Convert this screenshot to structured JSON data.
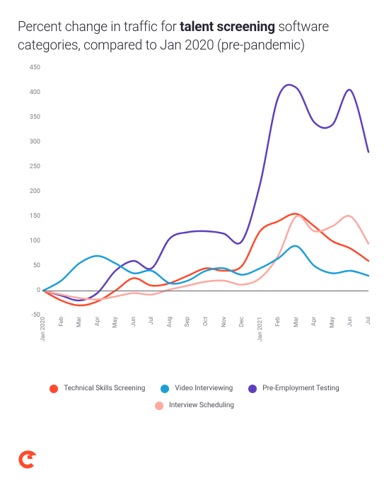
{
  "title": {
    "pre": "Percent change in traffic for ",
    "bold": "talent screening",
    "post": " software categories, compared to Jan 2020 (pre-pandemic)",
    "fontsize": 19,
    "color": "#252530"
  },
  "chart": {
    "type": "line",
    "background_color": "#ffffff",
    "baseline_color": "#606068",
    "axis_text_color": "#7a7a85",
    "axis_fontsize": 9,
    "line_width": 2.5,
    "ylim": [
      -50,
      450
    ],
    "ytick_step": 50,
    "yticks": [
      -50,
      0,
      50,
      100,
      150,
      200,
      250,
      300,
      350,
      400,
      450
    ],
    "x_labels": [
      "Jan 2020",
      "Feb",
      "Mar",
      "Apr",
      "May",
      "Jun",
      "Jul",
      "Aug",
      "Sep",
      "Oct",
      "Nov",
      "Dec",
      "Jan 2021",
      "Feb",
      "Mar",
      "Apr",
      "May",
      "Jun",
      "Jul"
    ],
    "series": [
      {
        "id": "pre_employment_testing",
        "label": "Pre-Employment Testing",
        "color": "#5e3fbe",
        "values": [
          0,
          -10,
          -20,
          -5,
          40,
          60,
          45,
          105,
          118,
          120,
          115,
          100,
          215,
          390,
          410,
          340,
          335,
          405,
          280
        ]
      },
      {
        "id": "technical_skills_screening",
        "label": "Technical Skills Screening",
        "color": "#ff492c",
        "values": [
          0,
          -20,
          -30,
          -22,
          0,
          25,
          10,
          15,
          30,
          45,
          40,
          50,
          120,
          140,
          155,
          130,
          100,
          85,
          60
        ]
      },
      {
        "id": "interview_scheduling",
        "label": "Interview Scheduling",
        "color": "#fda9a0",
        "values": [
          0,
          -8,
          -15,
          -18,
          -12,
          -5,
          -8,
          2,
          10,
          18,
          20,
          12,
          25,
          70,
          150,
          120,
          130,
          150,
          95
        ]
      },
      {
        "id": "video_interviewing",
        "label": "Video Interviewing",
        "color": "#1a9fd8",
        "values": [
          0,
          20,
          55,
          70,
          55,
          35,
          40,
          15,
          20,
          40,
          45,
          32,
          45,
          65,
          90,
          50,
          35,
          40,
          30
        ]
      }
    ]
  },
  "legend": {
    "fontsize": 10,
    "text_color": "#4a4a55",
    "order": [
      "technical_skills_screening",
      "video_interviewing",
      "pre_employment_testing",
      "interview_scheduling"
    ]
  },
  "logo": {
    "color": "#ff492c",
    "text": "G2"
  }
}
